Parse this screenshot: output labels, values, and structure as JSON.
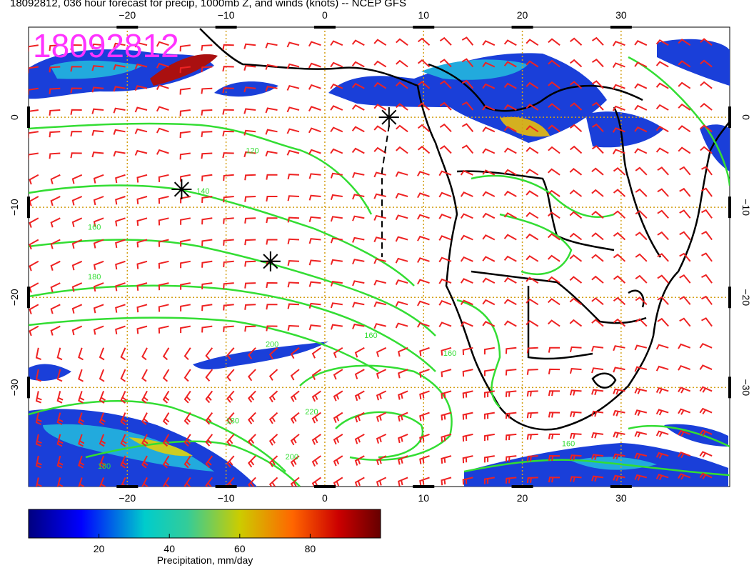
{
  "title": "18092812, 036 hour forecast for precip, 1000mb Z, and winds (knots) -- NCEP GFS",
  "date_stamp": "18092812",
  "map": {
    "lon_range": [
      -30,
      41
    ],
    "lat_range": [
      -41,
      10
    ],
    "lon_ticks": [
      -20,
      -10,
      0,
      10,
      20,
      30
    ],
    "lat_ticks": [
      0,
      -10,
      -20,
      -30
    ],
    "lon_tick_labels": [
      "−20",
      "−10",
      "0",
      "10",
      "20",
      "30"
    ],
    "lat_tick_labels": [
      "0",
      "−10",
      "−20",
      "−30"
    ],
    "grid_color": "#d4a017",
    "coast_color": "#000000",
    "contour_color": "#33dd33",
    "barb_color": "#ee2222",
    "contour_labels": [
      "120",
      "140",
      "160",
      "180",
      "200",
      "220",
      "160",
      "180",
      "160",
      "180",
      "200",
      "160"
    ],
    "highs": [
      {
        "lon": 6.5,
        "lat": 0
      },
      {
        "lon": -14.5,
        "lat": -8
      },
      {
        "lon": -5.5,
        "lat": -16
      }
    ]
  },
  "colorbar": {
    "label": "Precipitation, mm/day",
    "ticks": [
      20,
      40,
      60,
      80
    ],
    "tick_labels": [
      "20",
      "40",
      "60",
      "80"
    ],
    "range": [
      0,
      100
    ]
  }
}
